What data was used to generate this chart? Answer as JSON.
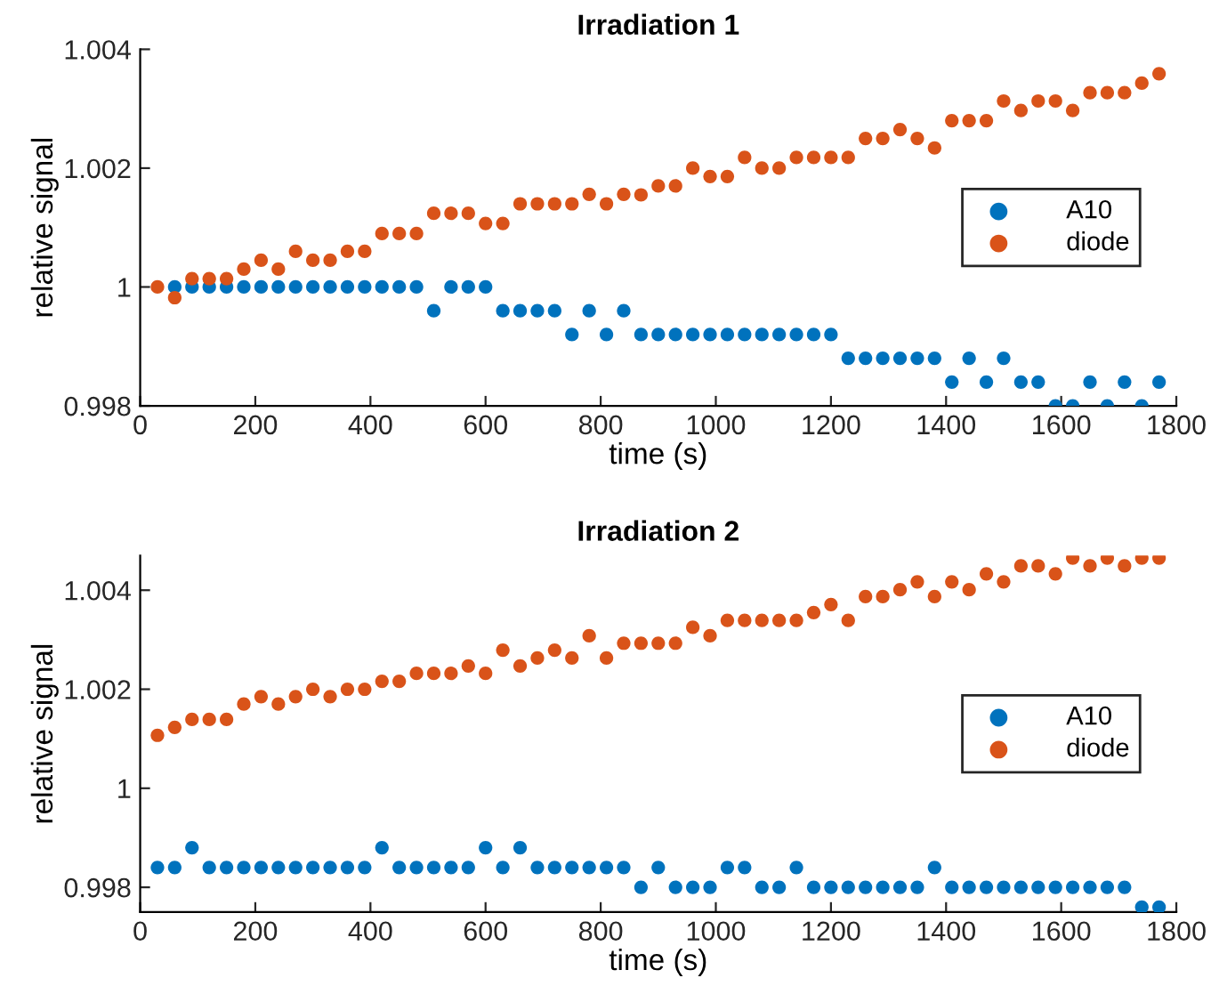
{
  "chart_data": [
    {
      "type": "scatter",
      "title": "Irradiation 1",
      "xlabel": "time (s)",
      "ylabel": "relative signal",
      "x": [
        30,
        60,
        90,
        120,
        150,
        180,
        210,
        240,
        270,
        300,
        330,
        360,
        390,
        420,
        450,
        480,
        510,
        540,
        570,
        600,
        630,
        660,
        690,
        720,
        750,
        780,
        810,
        840,
        870,
        900,
        930,
        960,
        990,
        1020,
        1050,
        1080,
        1110,
        1140,
        1170,
        1200,
        1230,
        1260,
        1290,
        1320,
        1350,
        1380,
        1410,
        1440,
        1470,
        1500,
        1530,
        1560,
        1590,
        1620,
        1650,
        1680,
        1710,
        1740,
        1770
      ],
      "series": [
        {
          "name": "A10",
          "color": "#0072bd",
          "values": [
            null,
            1,
            1,
            1,
            1,
            1,
            1,
            1,
            1,
            1,
            1,
            1,
            1,
            1,
            1,
            1,
            0.9996,
            1,
            1,
            1,
            0.9996,
            0.9996,
            0.9996,
            0.9996,
            0.9992,
            0.9996,
            0.9992,
            0.9996,
            0.9992,
            0.9992,
            0.9992,
            0.9992,
            0.9992,
            0.9992,
            0.9992,
            0.9992,
            0.9992,
            0.9992,
            0.9992,
            0.9992,
            0.9988,
            0.9988,
            0.9988,
            0.9988,
            0.9988,
            0.9988,
            0.9984,
            0.9988,
            0.9984,
            0.9988,
            0.9984,
            0.9984,
            0.998,
            0.998,
            0.9984,
            0.998,
            0.9984,
            0.998,
            0.9984
          ]
        },
        {
          "name": "diode",
          "color": "#d95319",
          "values": [
            1.0,
            0.99982,
            1.00014,
            1.00014,
            1.00014,
            1.0003,
            1.00045,
            1.0003,
            1.0006,
            1.00045,
            1.00045,
            1.0006,
            1.0006,
            1.0009,
            1.0009,
            1.0009,
            1.00124,
            1.00124,
            1.00124,
            1.00107,
            1.00107,
            1.0014,
            1.0014,
            1.0014,
            1.0014,
            1.00156,
            1.0014,
            1.00156,
            1.00155,
            1.0017,
            1.0017,
            1.002,
            1.00186,
            1.00186,
            1.00218,
            1.002,
            1.002,
            1.00218,
            1.00218,
            1.00218,
            1.00218,
            1.0025,
            1.0025,
            1.00265,
            1.0025,
            1.00234,
            1.0028,
            1.0028,
            1.0028,
            1.00313,
            1.00297,
            1.00313,
            1.00313,
            1.00297,
            1.00327,
            1.00327,
            1.00327,
            1.00343,
            1.00359
          ]
        }
      ],
      "xlim": [
        0,
        1800
      ],
      "xticks": [
        0,
        200,
        400,
        600,
        800,
        1000,
        1200,
        1400,
        1600,
        1800
      ],
      "ylim": [
        0.998,
        1.004
      ],
      "yticks": [
        0.998,
        1,
        1.002,
        1.004
      ],
      "marker": "circle",
      "legend": "center right",
      "grid": false
    },
    {
      "type": "scatter",
      "title": "Irradiation 2",
      "xlabel": "time (s)",
      "ylabel": "relative signal",
      "x": [
        30,
        60,
        90,
        120,
        150,
        180,
        210,
        240,
        270,
        300,
        330,
        360,
        390,
        420,
        450,
        480,
        510,
        540,
        570,
        600,
        630,
        660,
        690,
        720,
        750,
        780,
        810,
        840,
        870,
        900,
        930,
        960,
        990,
        1020,
        1050,
        1080,
        1110,
        1140,
        1170,
        1200,
        1230,
        1260,
        1290,
        1320,
        1350,
        1380,
        1410,
        1440,
        1470,
        1500,
        1530,
        1560,
        1590,
        1620,
        1650,
        1680,
        1710,
        1740,
        1770
      ],
      "series": [
        {
          "name": "A10",
          "color": "#0072bd",
          "values": [
            0.9984,
            0.9984,
            0.9988,
            0.9984,
            0.9984,
            0.9984,
            0.9984,
            0.9984,
            0.9984,
            0.9984,
            0.9984,
            0.9984,
            0.9984,
            0.9988,
            0.9984,
            0.9984,
            0.9984,
            0.9984,
            0.9984,
            0.9988,
            0.9984,
            0.9988,
            0.9984,
            0.9984,
            0.9984,
            0.9984,
            0.9984,
            0.9984,
            0.998,
            0.9984,
            0.998,
            0.998,
            0.998,
            0.9984,
            0.9984,
            0.998,
            0.998,
            0.9984,
            0.998,
            0.998,
            0.998,
            0.998,
            0.998,
            0.998,
            0.998,
            0.9984,
            0.998,
            0.998,
            0.998,
            0.998,
            0.998,
            0.998,
            0.998,
            0.998,
            0.998,
            0.998,
            0.998,
            0.9976,
            0.9976
          ]
        },
        {
          "name": "diode",
          "color": "#d95319",
          "values": [
            1.00107,
            1.00123,
            1.00139,
            1.00139,
            1.00139,
            1.0017,
            1.00185,
            1.0017,
            1.00185,
            1.002,
            1.00185,
            1.002,
            1.002,
            1.00216,
            1.00216,
            1.00232,
            1.00232,
            1.00232,
            1.00247,
            1.00232,
            1.00279,
            1.00247,
            1.00263,
            1.00279,
            1.00263,
            1.00308,
            1.00263,
            1.00293,
            1.00293,
            1.00293,
            1.00293,
            1.00325,
            1.00308,
            1.00339,
            1.00339,
            1.00339,
            1.00339,
            1.00339,
            1.00355,
            1.00371,
            1.00339,
            1.00387,
            1.00387,
            1.00401,
            1.00417,
            1.00387,
            1.00417,
            1.00401,
            1.00433,
            1.00417,
            1.00449,
            1.00449,
            1.00433,
            1.00465,
            1.00449,
            1.00465,
            1.00449,
            1.00465,
            1.00465
          ]
        }
      ],
      "xlim": [
        0,
        1800
      ],
      "xticks": [
        0,
        200,
        400,
        600,
        800,
        1000,
        1200,
        1400,
        1600,
        1800
      ],
      "ylim": [
        0.9975,
        1.0047
      ],
      "yticks": [
        0.998,
        1,
        1.002,
        1.004
      ],
      "marker": "circle",
      "legend": "center right",
      "grid": false
    }
  ]
}
